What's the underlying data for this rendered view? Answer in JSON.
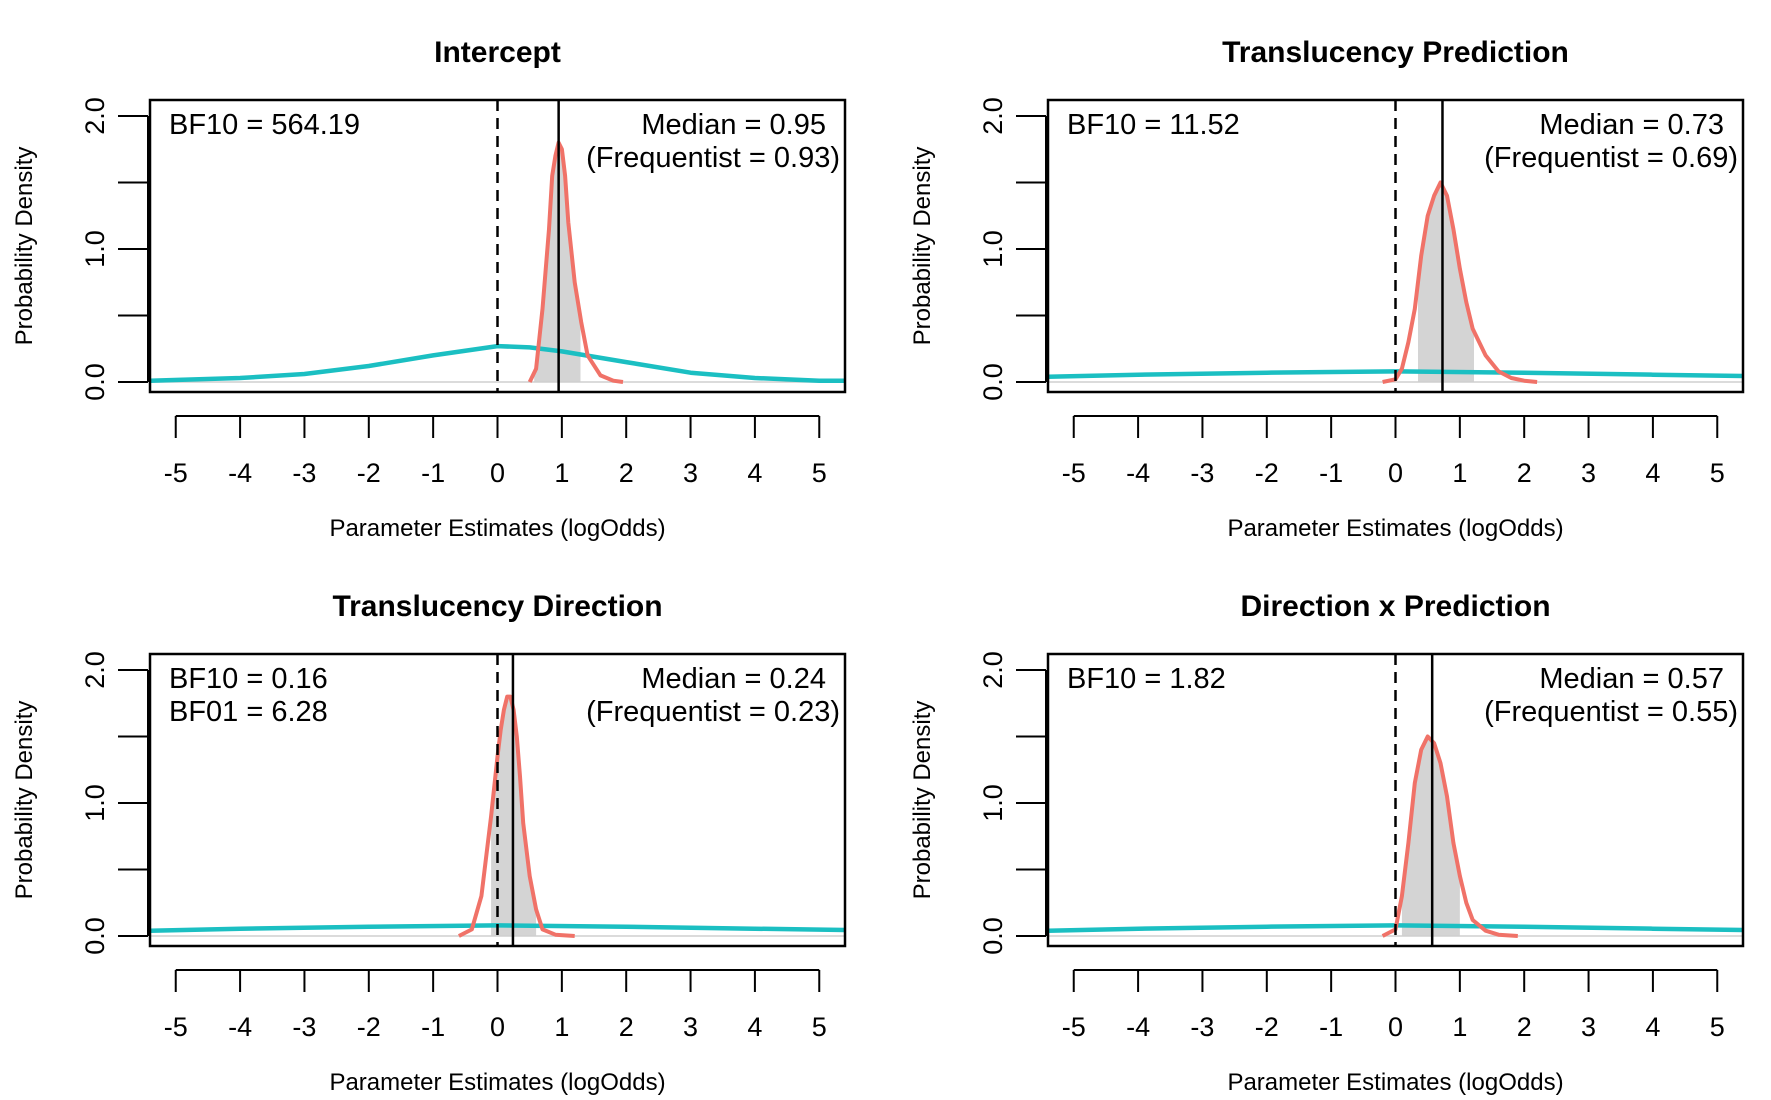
{
  "colors": {
    "prior": "#1bbfc2",
    "posterior": "#f07268",
    "ci_fill": "#d4d4d4",
    "frame": "#000000"
  },
  "chart_data": [
    {
      "type": "line",
      "title": "Intercept",
      "xlabel": "Parameter Estimates (logOdds)",
      "ylabel": "Probability Density",
      "xlim": [
        -5.4,
        5.4
      ],
      "ylim": [
        0,
        2.0
      ],
      "x_ticks": [
        "-5",
        "-4",
        "-3",
        "-2",
        "-1",
        "0",
        "1",
        "2",
        "3",
        "4",
        "5"
      ],
      "y_ticks": [
        "0.0",
        "1.0",
        "2.0"
      ],
      "grid": false,
      "series": [
        {
          "role": "prior",
          "x": [
            -5.4,
            -4,
            -3,
            -2,
            -1,
            0,
            0.5,
            1,
            2,
            3,
            4,
            5,
            5.4
          ],
          "values": [
            0.01,
            0.03,
            0.06,
            0.12,
            0.2,
            0.27,
            0.26,
            0.23,
            0.15,
            0.07,
            0.03,
            0.01,
            0.01
          ]
        },
        {
          "role": "posterior",
          "x": [
            0.5,
            0.6,
            0.7,
            0.8,
            0.85,
            0.9,
            0.95,
            1.0,
            1.05,
            1.1,
            1.2,
            1.3,
            1.4,
            1.6,
            1.8,
            1.95
          ],
          "values": [
            0.0,
            0.1,
            0.55,
            1.15,
            1.55,
            1.7,
            1.8,
            1.75,
            1.55,
            1.2,
            0.75,
            0.45,
            0.2,
            0.05,
            0.01,
            0.0
          ]
        }
      ],
      "credible_interval": [
        0.57,
        1.29
      ],
      "median": 0.95,
      "bf10": "BF10 = 564.19",
      "median_label": "Median = 0.95",
      "frequentist_label": "(Frequentist = 0.93)"
    },
    {
      "type": "line",
      "title": "Translucency Prediction",
      "xlabel": "Parameter Estimates (logOdds)",
      "ylabel": "Probability Density",
      "xlim": [
        -5.4,
        5.4
      ],
      "ylim": [
        0,
        2.0
      ],
      "x_ticks": [
        "-5",
        "-4",
        "-3",
        "-2",
        "-1",
        "0",
        "1",
        "2",
        "3",
        "4",
        "5"
      ],
      "y_ticks": [
        "0.0",
        "1.0",
        "2.0"
      ],
      "grid": false,
      "series": [
        {
          "role": "prior",
          "x": [
            -5.4,
            -4,
            -2,
            0,
            2,
            4,
            5.4
          ],
          "values": [
            0.04,
            0.055,
            0.07,
            0.08,
            0.07,
            0.055,
            0.045
          ]
        },
        {
          "role": "posterior",
          "x": [
            -0.2,
            0.0,
            0.1,
            0.2,
            0.3,
            0.4,
            0.5,
            0.6,
            0.7,
            0.8,
            0.9,
            1.0,
            1.1,
            1.2,
            1.4,
            1.6,
            1.8,
            2.0,
            2.2
          ],
          "values": [
            0.0,
            0.02,
            0.1,
            0.3,
            0.55,
            0.95,
            1.25,
            1.4,
            1.5,
            1.4,
            1.15,
            0.85,
            0.6,
            0.4,
            0.2,
            0.08,
            0.03,
            0.01,
            0.0
          ]
        }
      ],
      "credible_interval": [
        0.35,
        1.22
      ],
      "median": 0.73,
      "bf10": "BF10 = 11.52",
      "median_label": "Median = 0.73",
      "frequentist_label": "(Frequentist = 0.69)"
    },
    {
      "type": "line",
      "title": "Translucency Direction",
      "xlabel": "Parameter Estimates (logOdds)",
      "ylabel": "Probability Density",
      "xlim": [
        -5.4,
        5.4
      ],
      "ylim": [
        0,
        2.0
      ],
      "x_ticks": [
        "-5",
        "-4",
        "-3",
        "-2",
        "-1",
        "0",
        "1",
        "2",
        "3",
        "4",
        "5"
      ],
      "y_ticks": [
        "0.0",
        "1.0",
        "2.0"
      ],
      "grid": false,
      "series": [
        {
          "role": "prior",
          "x": [
            -5.4,
            -4,
            -2,
            0,
            2,
            4,
            5.4
          ],
          "values": [
            0.04,
            0.055,
            0.07,
            0.08,
            0.07,
            0.055,
            0.045
          ]
        },
        {
          "role": "posterior",
          "x": [
            -0.6,
            -0.4,
            -0.25,
            -0.1,
            0.0,
            0.05,
            0.1,
            0.15,
            0.2,
            0.25,
            0.3,
            0.35,
            0.4,
            0.5,
            0.6,
            0.7,
            0.9,
            1.2
          ],
          "values": [
            0.0,
            0.05,
            0.3,
            0.9,
            1.35,
            1.55,
            1.7,
            1.8,
            1.8,
            1.7,
            1.5,
            1.2,
            0.85,
            0.45,
            0.2,
            0.05,
            0.01,
            0.0
          ]
        }
      ],
      "credible_interval": [
        -0.1,
        0.6
      ],
      "median": 0.24,
      "bf10": "BF10 = 0.16",
      "bf01": "BF01 = 6.28",
      "median_label": "Median = 0.24",
      "frequentist_label": "(Frequentist = 0.23)"
    },
    {
      "type": "line",
      "title": "Direction x Prediction",
      "xlabel": "Parameter Estimates (logOdds)",
      "ylabel": "Probability Density",
      "xlim": [
        -5.4,
        5.4
      ],
      "ylim": [
        0,
        2.0
      ],
      "x_ticks": [
        "-5",
        "-4",
        "-3",
        "-2",
        "-1",
        "0",
        "1",
        "2",
        "3",
        "4",
        "5"
      ],
      "y_ticks": [
        "0.0",
        "1.0",
        "2.0"
      ],
      "grid": false,
      "series": [
        {
          "role": "prior",
          "x": [
            -5.4,
            -4,
            -2,
            0,
            2,
            4,
            5.4
          ],
          "values": [
            0.04,
            0.055,
            0.07,
            0.08,
            0.07,
            0.055,
            0.045
          ]
        },
        {
          "role": "posterior",
          "x": [
            -0.2,
            0.0,
            0.1,
            0.2,
            0.3,
            0.4,
            0.5,
            0.6,
            0.7,
            0.8,
            0.9,
            1.0,
            1.1,
            1.2,
            1.4,
            1.6,
            1.9
          ],
          "values": [
            0.0,
            0.05,
            0.3,
            0.7,
            1.15,
            1.4,
            1.5,
            1.45,
            1.3,
            1.05,
            0.7,
            0.45,
            0.25,
            0.12,
            0.04,
            0.01,
            0.0
          ]
        }
      ],
      "credible_interval": [
        0.1,
        1.0
      ],
      "median": 0.57,
      "bf10": "BF10 = 1.82",
      "median_label": "Median = 0.57",
      "frequentist_label": "(Frequentist = 0.55)"
    }
  ]
}
